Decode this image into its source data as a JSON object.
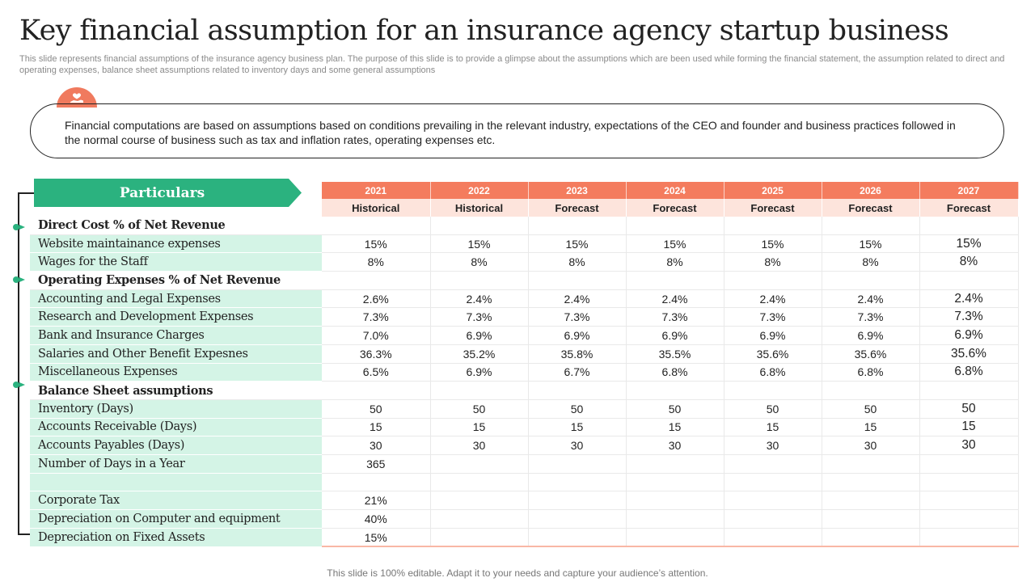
{
  "page": {
    "title": "Key financial assumption for an insurance agency startup business",
    "subtitle": "This slide represents financial assumptions of the insurance agency business plan. The purpose of this slide is to provide a glimpse about the assumptions which are been used while forming the financial statement, the assumption related to direct and operating expenses, balance sheet assumptions related to inventory days and some general assumptions",
    "callout_text": "Financial computations are based on assumptions based on conditions prevailing in the relevant industry, expectations of the CEO and founder and business practices followed in the normal course of business such as tax and inflation rates, operating expenses etc.",
    "callout_icon": "hand-heart-icon",
    "footer": "This slide is 100% editable. Adapt it to your needs and capture your audience’s attention."
  },
  "colors": {
    "accent_green": "#2bb27f",
    "accent_coral": "#f47c5e",
    "row_green": "#d4f4e6",
    "phase_bg": "#fde4dc"
  },
  "table": {
    "particulars_label": "Particulars",
    "years": [
      "2021",
      "2022",
      "2023",
      "2024",
      "2025",
      "2026",
      "2027"
    ],
    "phases": [
      "Historical",
      "Historical",
      "Forecast",
      "Forecast",
      "Forecast",
      "Forecast",
      "Forecast"
    ],
    "rows": [
      {
        "type": "section",
        "label": "Direct Cost % of Net Revenue",
        "values": [
          "",
          "",
          "",
          "",
          "",
          "",
          ""
        ]
      },
      {
        "type": "item",
        "label": "Website maintainance expenses",
        "values": [
          "15%",
          "15%",
          "15%",
          "15%",
          "15%",
          "15%",
          "15%"
        ]
      },
      {
        "type": "item",
        "label": "Wages for the Staff",
        "values": [
          "8%",
          "8%",
          "8%",
          "8%",
          "8%",
          "8%",
          "8%"
        ]
      },
      {
        "type": "section",
        "label": "Operating Expenses % of Net Revenue",
        "values": [
          "",
          "",
          "",
          "",
          "",
          "",
          ""
        ]
      },
      {
        "type": "item",
        "label": "Accounting and Legal Expenses",
        "values": [
          "2.6%",
          "2.4%",
          "2.4%",
          "2.4%",
          "2.4%",
          "2.4%",
          "2.4%"
        ]
      },
      {
        "type": "item",
        "label": "Research and Development Expenses",
        "values": [
          "7.3%",
          "7.3%",
          "7.3%",
          "7.3%",
          "7.3%",
          "7.3%",
          "7.3%"
        ]
      },
      {
        "type": "item",
        "label": "Bank and Insurance Charges",
        "values": [
          "7.0%",
          "6.9%",
          "6.9%",
          "6.9%",
          "6.9%",
          "6.9%",
          "6.9%"
        ]
      },
      {
        "type": "item",
        "label": "Salaries and Other Benefit Expesnes",
        "values": [
          "36.3%",
          "35.2%",
          "35.8%",
          "35.5%",
          "35.6%",
          "35.6%",
          "35.6%"
        ]
      },
      {
        "type": "item",
        "label": "Miscellaneous Expenses",
        "values": [
          "6.5%",
          "6.9%",
          "6.7%",
          "6.8%",
          "6.8%",
          "6.8%",
          "6.8%"
        ]
      },
      {
        "type": "section",
        "label": "Balance Sheet assumptions",
        "values": [
          "",
          "",
          "",
          "",
          "",
          "",
          ""
        ]
      },
      {
        "type": "item",
        "label": "Inventory (Days)",
        "values": [
          "50",
          "50",
          "50",
          "50",
          "50",
          "50",
          "50"
        ]
      },
      {
        "type": "item",
        "label": "Accounts Receivable (Days)",
        "values": [
          "15",
          "15",
          "15",
          "15",
          "15",
          "15",
          "15"
        ]
      },
      {
        "type": "item",
        "label": "Accounts Payables (Days)",
        "values": [
          "30",
          "30",
          "30",
          "30",
          "30",
          "30",
          "30"
        ]
      },
      {
        "type": "item",
        "label": "Number of Days in a Year",
        "values": [
          "365",
          "",
          "",
          "",
          "",
          "",
          ""
        ]
      },
      {
        "type": "item",
        "label": "",
        "values": [
          "",
          "",
          "",
          "",
          "",
          "",
          ""
        ]
      },
      {
        "type": "item",
        "label": "Corporate Tax",
        "values": [
          "21%",
          "",
          "",
          "",
          "",
          "",
          ""
        ]
      },
      {
        "type": "item",
        "label": "Depreciation on Computer and equipment",
        "values": [
          "40%",
          "",
          "",
          "",
          "",
          "",
          ""
        ]
      },
      {
        "type": "item",
        "label": "Depreciation on Fixed Assets",
        "values": [
          "15%",
          "",
          "",
          "",
          "",
          "",
          ""
        ]
      }
    ]
  }
}
